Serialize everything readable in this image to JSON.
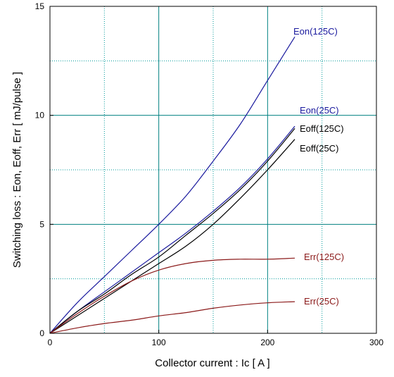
{
  "chart_data": {
    "type": "line",
    "title": "",
    "xlabel": "Collector current : Ic [ A ]",
    "ylabel": "Switching loss : Eon, Eoff, Err [ mJ/pulse ]",
    "xlim": [
      0,
      300
    ],
    "ylim": [
      0,
      15
    ],
    "xticks": [
      0,
      100,
      200,
      300
    ],
    "yticks": [
      0,
      5,
      10,
      15
    ],
    "xgrid_minor": [
      50,
      150,
      250
    ],
    "ygrid_minor": [
      2.5,
      7.5,
      12.5
    ],
    "grid": true,
    "colors": {
      "eon": "#1a1a9e",
      "eoff": "#000000",
      "err": "#8b1a1a",
      "major_grid": "#008080",
      "minor_grid": "#009999"
    },
    "series": [
      {
        "name": "Eon(125C)",
        "color": "#1a1a9e",
        "x": [
          0,
          25,
          50,
          75,
          100,
          125,
          150,
          175,
          200,
          225
        ],
        "y": [
          0,
          1.4,
          2.6,
          3.8,
          5.0,
          6.3,
          7.9,
          9.6,
          11.6,
          13.6
        ]
      },
      {
        "name": "Eon(25C)",
        "color": "#1a1a9e",
        "x": [
          0,
          25,
          50,
          75,
          100,
          125,
          150,
          175,
          200,
          225
        ],
        "y": [
          0,
          1.0,
          1.9,
          2.8,
          3.7,
          4.6,
          5.6,
          6.7,
          8.0,
          9.5
        ]
      },
      {
        "name": "Eoff(125C)",
        "color": "#000000",
        "x": [
          0,
          25,
          50,
          75,
          100,
          125,
          150,
          175,
          200,
          225
        ],
        "y": [
          0,
          1.0,
          1.8,
          2.7,
          3.5,
          4.5,
          5.5,
          6.6,
          7.9,
          9.4
        ]
      },
      {
        "name": "Eoff(25C)",
        "color": "#000000",
        "x": [
          0,
          25,
          50,
          75,
          100,
          125,
          150,
          175,
          200,
          225
        ],
        "y": [
          0,
          0.8,
          1.6,
          2.4,
          3.2,
          4.0,
          5.0,
          6.2,
          7.5,
          8.9
        ]
      },
      {
        "name": "Err(125C)",
        "color": "#8b1a1a",
        "x": [
          0,
          25,
          50,
          75,
          100,
          125,
          150,
          175,
          200,
          225
        ],
        "y": [
          0,
          0.9,
          1.7,
          2.4,
          2.9,
          3.2,
          3.35,
          3.4,
          3.4,
          3.45
        ]
      },
      {
        "name": "Err(25C)",
        "color": "#8b1a1a",
        "x": [
          0,
          25,
          50,
          75,
          100,
          125,
          150,
          175,
          200,
          225
        ],
        "y": [
          0,
          0.25,
          0.45,
          0.6,
          0.8,
          0.95,
          1.15,
          1.3,
          1.4,
          1.45
        ]
      }
    ]
  }
}
